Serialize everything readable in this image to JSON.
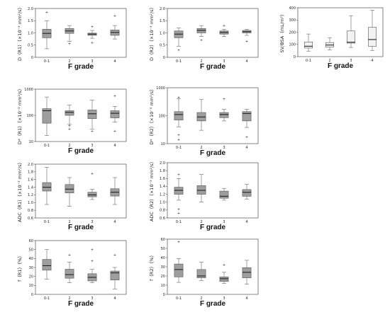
{
  "chart_data": [
    {
      "id": "D_R1",
      "type": "boxplot",
      "ylabel": "D（R1）（×10⁻³ mm²/s）",
      "xlabel": "F grade",
      "categories": [
        "0-1",
        "2",
        "3",
        "4"
      ],
      "ylim": [
        0,
        2.0
      ],
      "yticks": [
        0,
        0.5,
        1.0,
        1.5,
        2.0
      ],
      "yticklabels": [
        "0",
        "0.5",
        "1.0",
        "1.5",
        "2.0"
      ],
      "log": false,
      "color": "#9e9e9e",
      "boxes": [
        {
          "min": 0.35,
          "q1": 0.8,
          "median": 0.98,
          "q3": 1.15,
          "max": 1.5,
          "outliers": [
            1.85
          ]
        },
        {
          "min": 0.65,
          "q1": 0.98,
          "median": 1.08,
          "q3": 1.18,
          "max": 1.3,
          "outliers": [
            0.55
          ]
        },
        {
          "min": 0.78,
          "q1": 0.9,
          "median": 0.95,
          "q3": 0.99,
          "max": 1.1,
          "outliers": [
            1.25,
            0.6
          ]
        },
        {
          "min": 0.75,
          "q1": 0.9,
          "median": 1.02,
          "q3": 1.12,
          "max": 1.3,
          "outliers": [
            1.7
          ]
        }
      ]
    },
    {
      "id": "D_R2",
      "type": "boxplot",
      "ylabel": "D（R2）（×10⁻³ mm²/s）",
      "xlabel": "F grade",
      "categories": [
        "0-1",
        "2",
        "3",
        "4"
      ],
      "ylim": [
        0,
        2.0
      ],
      "yticks": [
        0,
        0.5,
        1.0,
        1.5,
        2.0
      ],
      "yticklabels": [
        "0",
        "0.5",
        "1.0",
        "1.5",
        "2.0"
      ],
      "log": false,
      "color": "#9e9e9e",
      "boxes": [
        {
          "min": 0.45,
          "q1": 0.8,
          "median": 0.95,
          "q3": 1.08,
          "max": 1.2,
          "outliers": [
            0.3
          ]
        },
        {
          "min": 0.85,
          "q1": 1.0,
          "median": 1.1,
          "q3": 1.18,
          "max": 1.3,
          "outliers": [
            0.7
          ]
        },
        {
          "min": 0.85,
          "q1": 0.95,
          "median": 1.02,
          "q3": 1.08,
          "max": 1.15,
          "outliers": [
            1.3
          ]
        },
        {
          "min": 0.9,
          "q1": 1.0,
          "median": 1.05,
          "q3": 1.1,
          "max": 1.15,
          "outliers": [
            0.65
          ]
        }
      ]
    },
    {
      "id": "SV_BSA",
      "type": "boxplot",
      "ylabel": "SV/BSA（mL/m²）",
      "xlabel": "F grade",
      "categories": [
        "0-1",
        "2",
        "3",
        "4"
      ],
      "ylim": [
        0,
        400
      ],
      "yticks": [
        0,
        100,
        200,
        300,
        400
      ],
      "yticklabels": [
        "0",
        "100",
        "200",
        "300",
        "400"
      ],
      "log": false,
      "color": "#f2f2f2",
      "boxes": [
        {
          "min": 45,
          "q1": 70,
          "median": 85,
          "q3": 120,
          "max": 185,
          "outliers": []
        },
        {
          "min": 55,
          "q1": 78,
          "median": 95,
          "q3": 115,
          "max": 155,
          "outliers": []
        },
        {
          "min": 75,
          "q1": 110,
          "median": 118,
          "q3": 210,
          "max": 335,
          "outliers": []
        },
        {
          "min": 50,
          "q1": 85,
          "median": 140,
          "q3": 240,
          "max": 380,
          "outliers": []
        }
      ]
    },
    {
      "id": "Dstar_R1",
      "type": "boxplot",
      "ylabel": "D*（R1）（×10⁻³ mm²/s）",
      "xlabel": "F grade",
      "categories": [
        "0-1",
        "2",
        "3",
        "4"
      ],
      "ylim": [
        10,
        1000
      ],
      "yticks": [
        10,
        100,
        1000
      ],
      "yticklabels": [
        "10",
        "100",
        "1000"
      ],
      "log": true,
      "color": "#9e9e9e",
      "boxes": [
        {
          "min": 17,
          "q1": 50,
          "median": 150,
          "q3": 180,
          "max": 500,
          "outliers": []
        },
        {
          "min": 45,
          "q1": 100,
          "median": 130,
          "q3": 150,
          "max": 250,
          "outliers": [
            30,
            40
          ]
        },
        {
          "min": 30,
          "q1": 75,
          "median": 115,
          "q3": 160,
          "max": 380,
          "outliers": [
            25
          ]
        },
        {
          "min": 55,
          "q1": 80,
          "median": 120,
          "q3": 150,
          "max": 220,
          "outliers": [
            550,
            25
          ]
        }
      ]
    },
    {
      "id": "Dstar_R2",
      "type": "boxplot",
      "ylabel": "D*（R2）（×10⁻³ mm²/s）",
      "xlabel": "F grade",
      "categories": [
        "0-1",
        "2",
        "3",
        "4"
      ],
      "ylim": [
        10,
        1000
      ],
      "yticks": [
        10,
        100,
        1000
      ],
      "yticklabels": [
        "10",
        "100",
        "1000"
      ],
      "log": true,
      "color": "#9e9e9e",
      "boxes": [
        {
          "min": 40,
          "q1": 70,
          "median": 110,
          "q3": 140,
          "max": 400,
          "outliers": [
            450,
            20,
            14
          ]
        },
        {
          "min": 30,
          "q1": 65,
          "median": 90,
          "q3": 130,
          "max": 380,
          "outliers": []
        },
        {
          "min": 65,
          "q1": 85,
          "median": 110,
          "q3": 130,
          "max": 170,
          "outliers": [
            400
          ]
        },
        {
          "min": 38,
          "q1": 65,
          "median": 120,
          "q3": 140,
          "max": 170,
          "outliers": [
            17
          ]
        }
      ]
    },
    {
      "id": "ADC_R1",
      "type": "boxplot",
      "ylabel": "ADC（R1）（×10⁻³ mm²/s）",
      "xlabel": "F grade",
      "categories": [
        "0-1",
        "2",
        "3",
        "4"
      ],
      "ylim": [
        0.6,
        2.0
      ],
      "yticks": [
        0.6,
        0.8,
        1.0,
        1.2,
        1.4,
        1.6,
        1.8,
        2.0
      ],
      "yticklabels": [
        "0.6",
        "0.8",
        "1.0",
        "1.2",
        "1.4",
        "1.6",
        "1.8",
        "2.0"
      ],
      "log": false,
      "color": "#9e9e9e",
      "boxes": [
        {
          "min": 0.95,
          "q1": 1.3,
          "median": 1.4,
          "q3": 1.52,
          "max": 1.92,
          "outliers": []
        },
        {
          "min": 0.9,
          "q1": 1.25,
          "median": 1.35,
          "q3": 1.47,
          "max": 1.65,
          "outliers": []
        },
        {
          "min": 1.08,
          "q1": 1.15,
          "median": 1.2,
          "q3": 1.27,
          "max": 1.35,
          "outliers": [
            1.75
          ]
        },
        {
          "min": 0.95,
          "q1": 1.17,
          "median": 1.27,
          "q3": 1.36,
          "max": 1.65,
          "outliers": []
        }
      ]
    },
    {
      "id": "ADC_R2",
      "type": "boxplot",
      "ylabel": "ADC（R2）（×10⁻³ mm²/s）",
      "xlabel": "F grade",
      "categories": [
        "0-1",
        "2",
        "3",
        "4"
      ],
      "ylim": [
        0.6,
        2.0
      ],
      "yticks": [
        0.6,
        0.8,
        1.0,
        1.2,
        1.4,
        1.6,
        1.8,
        2.0
      ],
      "yticklabels": [
        "0.6",
        "0.8",
        "1.0",
        "1.2",
        "1.4",
        "1.6",
        "1.8",
        "2.0"
      ],
      "log": false,
      "color": "#9e9e9e",
      "boxes": [
        {
          "min": 1.05,
          "q1": 1.2,
          "median": 1.3,
          "q3": 1.38,
          "max": 1.6,
          "outliers": [
            1.7,
            0.82,
            0.72
          ]
        },
        {
          "min": 1.0,
          "q1": 1.2,
          "median": 1.3,
          "q3": 1.42,
          "max": 1.7,
          "outliers": []
        },
        {
          "min": 1.05,
          "q1": 1.1,
          "median": 1.15,
          "q3": 1.28,
          "max": 1.35,
          "outliers": []
        },
        {
          "min": 1.08,
          "q1": 1.15,
          "median": 1.25,
          "q3": 1.32,
          "max": 1.45,
          "outliers": []
        }
      ]
    },
    {
      "id": "f_R1",
      "type": "boxplot",
      "ylabel": "f（R1）（%）",
      "xlabel": "F grade",
      "categories": [
        "0-1",
        "2",
        "3",
        "4"
      ],
      "ylim": [
        0,
        60
      ],
      "yticks": [
        0,
        10,
        20,
        30,
        40,
        50,
        60
      ],
      "yticklabels": [
        "0",
        "10",
        "20",
        "30",
        "40",
        "50",
        "60"
      ],
      "log": false,
      "color": "#9e9e9e",
      "boxes": [
        {
          "min": 17,
          "q1": 27,
          "median": 32,
          "q3": 39,
          "max": 50,
          "outliers": []
        },
        {
          "min": 13,
          "q1": 18,
          "median": 22,
          "q3": 28,
          "max": 36,
          "outliers": [
            44
          ]
        },
        {
          "min": 13,
          "q1": 15,
          "median": 19,
          "q3": 23,
          "max": 28,
          "outliers": [
            50,
            37
          ]
        },
        {
          "min": 6,
          "q1": 16,
          "median": 24,
          "q3": 26,
          "max": 30,
          "outliers": [
            44
          ]
        }
      ]
    },
    {
      "id": "f_R2",
      "type": "boxplot",
      "ylabel": "f（R2）（%）",
      "xlabel": "F grade",
      "categories": [
        "0-1",
        "2",
        "3",
        "4"
      ],
      "ylim": [
        0,
        60
      ],
      "yticks": [
        0,
        10,
        20,
        30,
        40,
        50,
        60
      ],
      "yticklabels": [
        "0",
        "10",
        "20",
        "30",
        "40",
        "50",
        "60"
      ],
      "log": false,
      "color": "#9e9e9e",
      "boxes": [
        {
          "min": 13,
          "q1": 19,
          "median": 27,
          "q3": 33,
          "max": 39,
          "outliers": [
            57
          ]
        },
        {
          "min": 15,
          "q1": 18,
          "median": 20,
          "q3": 27,
          "max": 35,
          "outliers": []
        },
        {
          "min": 12,
          "q1": 14,
          "median": 17,
          "q3": 19,
          "max": 24,
          "outliers": [
            32
          ]
        },
        {
          "min": 11,
          "q1": 18,
          "median": 24,
          "q3": 29,
          "max": 37,
          "outliers": []
        }
      ]
    }
  ]
}
